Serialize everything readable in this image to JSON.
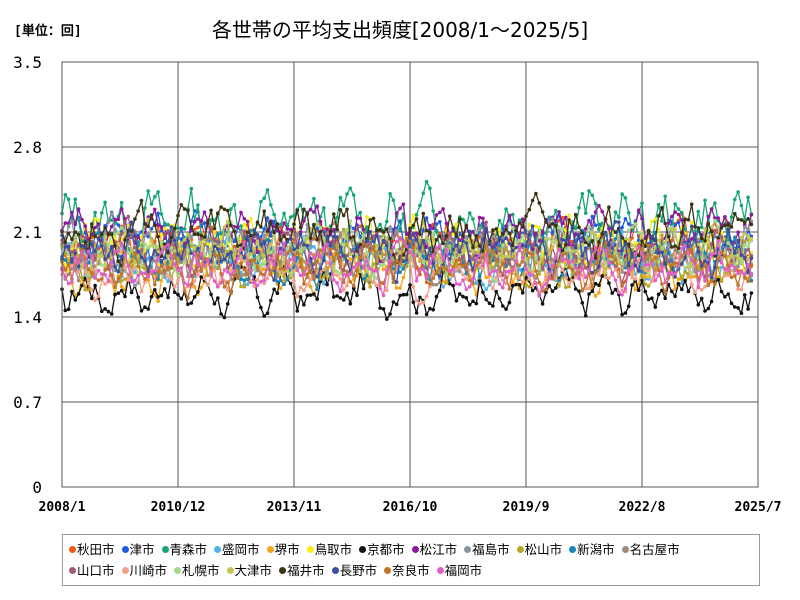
{
  "unit_label": "[単位：回]",
  "chart_data": {
    "type": "line",
    "title": "各世帯の平均支出頻度[2008/1～2025/5]",
    "xlabel": "",
    "ylabel": "",
    "x_range": [
      "2008/1",
      "2025/7"
    ],
    "x_ticks": [
      "2008/1",
      "2010/12",
      "2013/11",
      "2016/10",
      "2019/9",
      "2022/8",
      "2025/7"
    ],
    "y_ticks": [
      "0",
      "0.7",
      "1.4",
      "2.1",
      "2.8",
      "3.5"
    ],
    "ylim": [
      0,
      3.5
    ],
    "grid": true,
    "legend_position": "bottom",
    "series": [
      {
        "name": "秋田市",
        "color": "#f05a14",
        "base": 2.0,
        "vol": 0.22,
        "seed": 11
      },
      {
        "name": "津市",
        "color": "#1f5ce6",
        "base": 2.05,
        "vol": 0.22,
        "seed": 12
      },
      {
        "name": "青森市",
        "color": "#17a673",
        "base": 2.2,
        "vol": 0.3,
        "seed": 13
      },
      {
        "name": "盛岡市",
        "color": "#4fb3ea",
        "base": 1.85,
        "vol": 0.2,
        "seed": 14
      },
      {
        "name": "堺市",
        "color": "#f4a51c",
        "base": 1.8,
        "vol": 0.2,
        "seed": 15
      },
      {
        "name": "鳥取市",
        "color": "#f5ee1a",
        "base": 2.0,
        "vol": 0.25,
        "seed": 16
      },
      {
        "name": "京都市",
        "color": "#111111",
        "base": 1.6,
        "vol": 0.2,
        "seed": 17
      },
      {
        "name": "松江市",
        "color": "#8b1a9c",
        "base": 2.1,
        "vol": 0.22,
        "seed": 18
      },
      {
        "name": "福島市",
        "color": "#8a939a",
        "base": 1.95,
        "vol": 0.25,
        "seed": 19
      },
      {
        "name": "松山市",
        "color": "#b8a626",
        "base": 1.85,
        "vol": 0.2,
        "seed": 20
      },
      {
        "name": "新潟市",
        "color": "#1a86b8",
        "base": 1.9,
        "vol": 0.22,
        "seed": 21
      },
      {
        "name": "名古屋市",
        "color": "#a08a7a",
        "base": 1.9,
        "vol": 0.22,
        "seed": 22
      },
      {
        "name": "山口市",
        "color": "#a65a7a",
        "base": 1.95,
        "vol": 0.22,
        "seed": 23
      },
      {
        "name": "川崎市",
        "color": "#f2a08a",
        "base": 1.75,
        "vol": 0.2,
        "seed": 24
      },
      {
        "name": "札幌市",
        "color": "#a6d88a",
        "base": 1.95,
        "vol": 0.22,
        "seed": 25
      },
      {
        "name": "大津市",
        "color": "#c6c654",
        "base": 1.95,
        "vol": 0.22,
        "seed": 26
      },
      {
        "name": "福井市",
        "color": "#3a3414",
        "base": 2.1,
        "vol": 0.25,
        "seed": 27
      },
      {
        "name": "長野市",
        "color": "#3a4e9c",
        "base": 1.95,
        "vol": 0.22,
        "seed": 28
      },
      {
        "name": "奈良市",
        "color": "#c2742a",
        "base": 1.8,
        "vol": 0.2,
        "seed": 29
      },
      {
        "name": "福岡市",
        "color": "#e060c8",
        "base": 1.8,
        "vol": 0.2,
        "seed": 30
      }
    ]
  }
}
